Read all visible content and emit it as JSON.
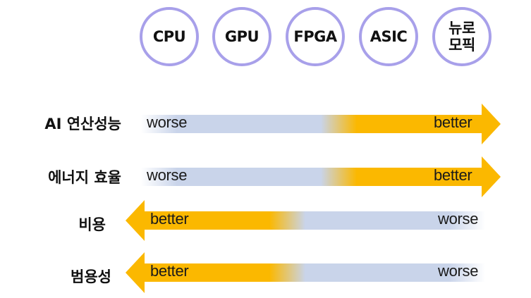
{
  "columns": [
    {
      "label": "CPU"
    },
    {
      "label": "GPU"
    },
    {
      "label": "FPGA"
    },
    {
      "label": "ASIC"
    },
    {
      "label": "뉴로\n모픽"
    }
  ],
  "rows": [
    {
      "label": "AI 연산성능",
      "direction": "right",
      "left_text": "worse",
      "right_text": "better"
    },
    {
      "label": "에너지 효율",
      "direction": "right",
      "left_text": "worse",
      "right_text": "better"
    },
    {
      "label": "비용",
      "direction": "left",
      "left_text": "better",
      "right_text": "worse"
    },
    {
      "label": "범용성",
      "direction": "left",
      "left_text": "better",
      "right_text": "worse"
    }
  ],
  "colors": {
    "circle_border": "#a8a0ea",
    "worse_color": "#c9d4ea",
    "better_color": "#fbb800"
  }
}
